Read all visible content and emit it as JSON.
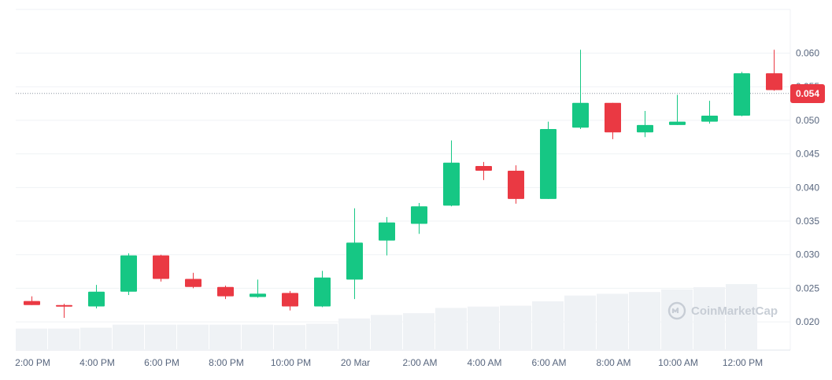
{
  "chart_data": {
    "type": "candlestick",
    "y_axis": {
      "ticks": [
        "0.060",
        "0.055",
        "0.050",
        "0.045",
        "0.040",
        "0.035",
        "0.030",
        "0.025",
        "0.020"
      ],
      "tick_values": [
        0.06,
        0.055,
        0.05,
        0.045,
        0.04,
        0.035,
        0.03,
        0.025,
        0.02
      ],
      "ylim": [
        0.0158,
        0.0665
      ],
      "position": "right"
    },
    "x_axis": {
      "ticks": [
        "2:00 PM",
        "4:00 PM",
        "6:00 PM",
        "8:00 PM",
        "10:00 PM",
        "20 Mar",
        "2:00 AM",
        "4:00 AM",
        "6:00 AM",
        "8:00 AM",
        "10:00 AM",
        "12:00 PM"
      ]
    },
    "current_price": {
      "value": 0.054,
      "label": "0.054"
    },
    "grid": true,
    "colors": {
      "up": "#16c784",
      "down": "#ea3943",
      "volume": "#eff2f5",
      "grid": "#eff2f5",
      "axis_text": "#58667e"
    },
    "candles": [
      {
        "time": "1:00 PM",
        "open": 0.0231,
        "high": 0.0238,
        "low": 0.0225,
        "close": 0.0225
      },
      {
        "time": "2:00 PM",
        "open": 0.0225,
        "high": 0.0227,
        "low": 0.0206,
        "close": 0.0223
      },
      {
        "time": "3:00 PM",
        "open": 0.0223,
        "high": 0.0255,
        "low": 0.022,
        "close": 0.0245
      },
      {
        "time": "4:00 PM",
        "open": 0.0245,
        "high": 0.0302,
        "low": 0.024,
        "close": 0.0299
      },
      {
        "time": "5:00 PM",
        "open": 0.0299,
        "high": 0.03,
        "low": 0.026,
        "close": 0.0264
      },
      {
        "time": "6:00 PM",
        "open": 0.0264,
        "high": 0.0273,
        "low": 0.025,
        "close": 0.0252
      },
      {
        "time": "7:00 PM",
        "open": 0.0252,
        "high": 0.0254,
        "low": 0.0234,
        "close": 0.0238
      },
      {
        "time": "8:00 PM",
        "open": 0.0237,
        "high": 0.0263,
        "low": 0.0236,
        "close": 0.0242
      },
      {
        "time": "9:00 PM",
        "open": 0.0243,
        "high": 0.0246,
        "low": 0.0217,
        "close": 0.0223
      },
      {
        "time": "10:00 PM",
        "open": 0.0223,
        "high": 0.0276,
        "low": 0.0222,
        "close": 0.0266
      },
      {
        "time": "11:00 PM",
        "open": 0.0263,
        "high": 0.0369,
        "low": 0.0234,
        "close": 0.0318
      },
      {
        "time": "12:00 AM",
        "open": 0.0321,
        "high": 0.0356,
        "low": 0.0299,
        "close": 0.0348
      },
      {
        "time": "1:00 AM",
        "open": 0.0346,
        "high": 0.0377,
        "low": 0.0331,
        "close": 0.0372
      },
      {
        "time": "2:00 AM",
        "open": 0.0373,
        "high": 0.047,
        "low": 0.0372,
        "close": 0.0437
      },
      {
        "time": "3:00 AM",
        "open": 0.0432,
        "high": 0.0438,
        "low": 0.0411,
        "close": 0.0425
      },
      {
        "time": "4:00 AM",
        "open": 0.0425,
        "high": 0.0433,
        "low": 0.0376,
        "close": 0.0383
      },
      {
        "time": "5:00 AM",
        "open": 0.0383,
        "high": 0.0498,
        "low": 0.0383,
        "close": 0.0487
      },
      {
        "time": "6:00 AM",
        "open": 0.0489,
        "high": 0.0605,
        "low": 0.0487,
        "close": 0.0526
      },
      {
        "time": "7:00 AM",
        "open": 0.0526,
        "high": 0.0526,
        "low": 0.0472,
        "close": 0.0482
      },
      {
        "time": "8:00 AM",
        "open": 0.0482,
        "high": 0.0514,
        "low": 0.0475,
        "close": 0.0493
      },
      {
        "time": "9:00 AM",
        "open": 0.0493,
        "high": 0.0538,
        "low": 0.0493,
        "close": 0.0498
      },
      {
        "time": "10:00 AM",
        "open": 0.0498,
        "high": 0.0529,
        "low": 0.0495,
        "close": 0.0507
      },
      {
        "time": "11:00 AM",
        "open": 0.0507,
        "high": 0.0572,
        "low": 0.0506,
        "close": 0.057
      },
      {
        "time": "12:00 PM",
        "open": 0.057,
        "high": 0.0605,
        "low": 0.0544,
        "close": 0.0545
      }
    ],
    "volume_relative": [
      0.47,
      0.47,
      0.49,
      0.56,
      0.56,
      0.56,
      0.56,
      0.56,
      0.55,
      0.58,
      0.7,
      0.78,
      0.82,
      0.94,
      0.97,
      0.99,
      1.09,
      1.22,
      1.26,
      1.3,
      1.36,
      1.41,
      1.48,
      0
    ]
  },
  "watermark": {
    "text": "CoinMarketCap"
  }
}
